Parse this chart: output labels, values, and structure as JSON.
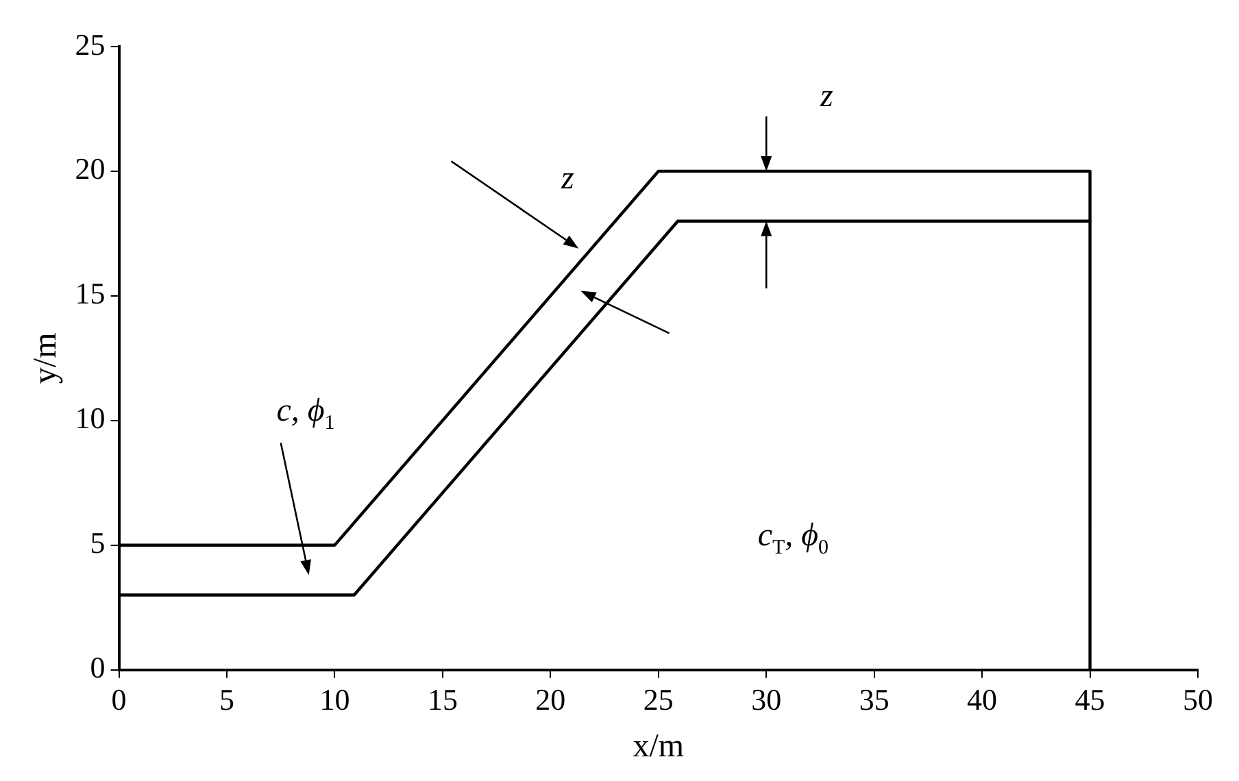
{
  "chart_data": {
    "type": "line",
    "xlabel": "x/m",
    "ylabel": "y/m",
    "xlim": [
      0,
      50
    ],
    "xticks": [
      0,
      5,
      10,
      15,
      20,
      25,
      30,
      35,
      40,
      45,
      50
    ],
    "ylim": [
      0,
      25
    ],
    "yticks": [
      0,
      5,
      10,
      15,
      20,
      25
    ],
    "grid": false,
    "legend": false,
    "marker": "none",
    "line_style": "solid",
    "series": [
      {
        "color": "#000000",
        "x": [
          0,
          0,
          10,
          25,
          45,
          45
        ],
        "values": [
          0,
          5,
          5,
          20,
          20,
          0
        ]
      },
      {
        "color": "#000000",
        "x": [
          0,
          10.9,
          25.9,
          45
        ],
        "values": [
          3,
          3,
          18,
          18
        ]
      }
    ],
    "annotations": [
      "z",
      "z",
      "c, ϕ$_{1}$",
      "c$_{T}$, ϕ$_{0}$"
    ]
  }
}
